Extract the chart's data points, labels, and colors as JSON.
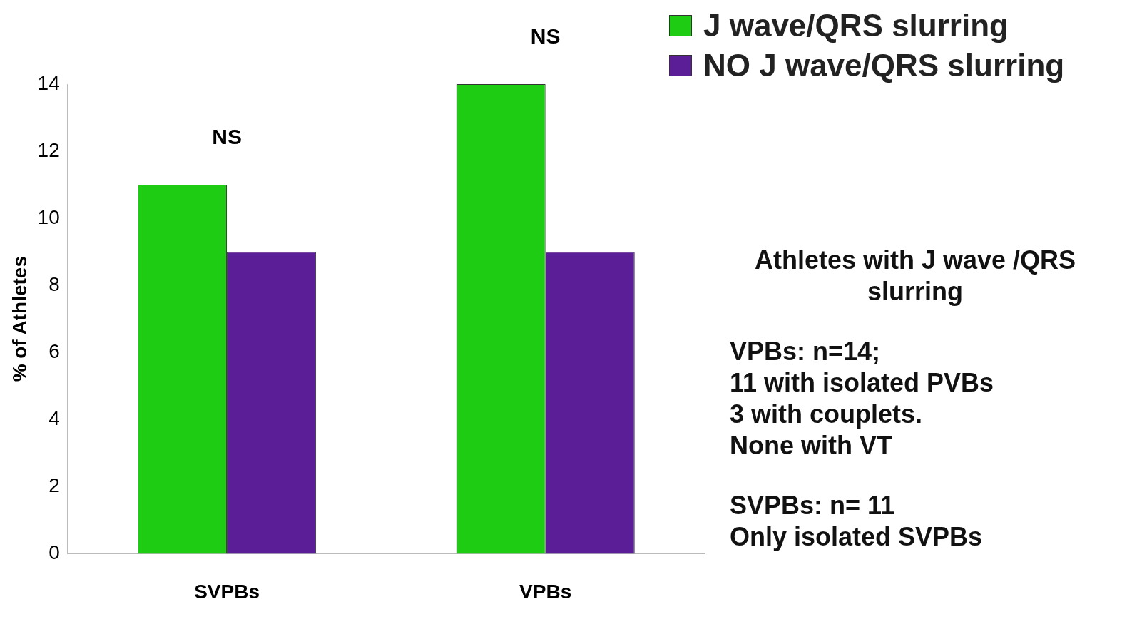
{
  "chart_data": {
    "type": "bar",
    "ylabel": "% of Athletes",
    "categories": [
      "SVPBs",
      "VPBs"
    ],
    "series": [
      {
        "name": "J wave/QRS slurring",
        "color": "#1ecc14",
        "values": [
          11,
          14
        ]
      },
      {
        "name": "NO J wave/QRS slurring",
        "color": "#5c1e96",
        "values": [
          9,
          9
        ]
      }
    ],
    "ylim": [
      0,
      14
    ],
    "yticks": [
      0,
      2,
      4,
      6,
      8,
      10,
      12,
      14
    ],
    "grid": false,
    "legend": "top right",
    "annotations": [
      {
        "text": "NS",
        "x": "SVPBs",
        "y": 11
      },
      {
        "text": "NS",
        "x": "VPBs",
        "y": 14
      },
      "Athletes with J wave /QRS slurring",
      "VPBs:  n=14;",
      "11 with isolated PVBs",
      "3 with couplets.",
      "None with VT",
      "SVPBs: n= 11",
      "Only isolated SVPBs"
    ]
  }
}
